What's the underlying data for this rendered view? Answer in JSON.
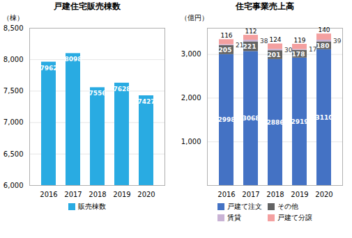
{
  "chart_data": [
    {
      "type": "bar",
      "title": "戸建住宅販売棟数",
      "ylabel": "（棟）",
      "categories": [
        "2016",
        "2017",
        "2018",
        "2019",
        "2020"
      ],
      "series": [
        {
          "name": "販売棟数",
          "color": "#29abe2",
          "values": [
            7962,
            8098,
            7556,
            7628,
            7427
          ]
        }
      ],
      "ylim": [
        6000,
        8500
      ],
      "yticks": [
        {
          "value": 6000,
          "label": "6,000"
        },
        {
          "value": 6500,
          "label": "6,500"
        },
        {
          "value": 7000,
          "label": "7,000"
        },
        {
          "value": 7500,
          "label": "7,500"
        },
        {
          "value": 8000,
          "label": "8,000"
        },
        {
          "value": 8500,
          "label": "8,500"
        }
      ],
      "grid": true,
      "data_labels": true,
      "legend": "bottom"
    },
    {
      "type": "bar",
      "stacked": true,
      "title": "住宅事業売上高",
      "ylabel": "（億円）",
      "categories": [
        "2016",
        "2017",
        "2018",
        "2019",
        "2020"
      ],
      "series": [
        {
          "name": "戸建て注文",
          "color": "#4472c4",
          "values": [
            2998,
            3068,
            2886,
            2919,
            3110
          ]
        },
        {
          "name": "その他",
          "color": "#636363",
          "values": [
            205,
            221,
            201,
            178,
            180
          ]
        },
        {
          "name": "賃貸",
          "color": "#c9b3d5",
          "values": [
            21,
            38,
            30,
            17,
            39
          ]
        },
        {
          "name": "戸建て分譲",
          "color": "#f4a0a0",
          "values": [
            116,
            112,
            124,
            119,
            140
          ]
        }
      ],
      "ylim": [
        0,
        3600
      ],
      "yticks": [
        {
          "value": 1000,
          "label": "1,000"
        },
        {
          "value": 2000,
          "label": "2,000"
        },
        {
          "value": 3000,
          "label": "3,000"
        }
      ],
      "grid": true,
      "data_labels": true,
      "legend": "bottom"
    }
  ]
}
